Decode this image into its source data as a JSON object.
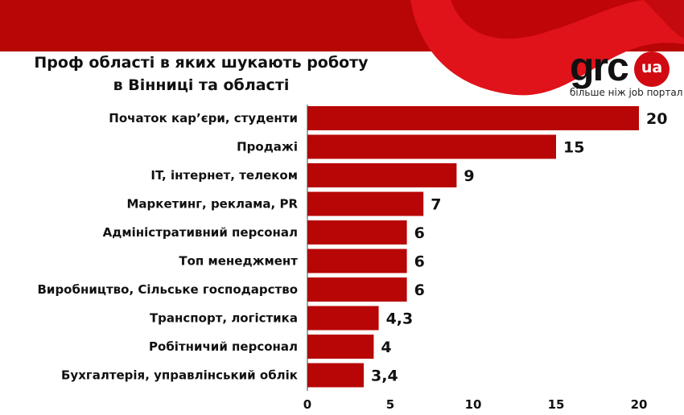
{
  "chart_data": {
    "type": "bar",
    "orientation": "horizontal",
    "title": "Проф області в яких шукають роботу в Вінниці та області",
    "title_lines": [
      "Проф області в яких шукають роботу",
      "в Вінниці та області"
    ],
    "categories": [
      "Початок кар’єри, студенти",
      "Продажі",
      "IT, інтернет, телеком",
      "Маркетинг, реклама, PR",
      "Адміністративний персонал",
      "Топ менеджмент",
      "Виробництво, Сільське господарство",
      "Транспорт, логістика",
      "Робітничий персонал",
      "Бухгалтерія, управлінський облік"
    ],
    "values": [
      20,
      15,
      9,
      7,
      6,
      6,
      6,
      4.3,
      4,
      3.4
    ],
    "data_labels": [
      "20",
      "15",
      "9",
      "7",
      "6",
      "6",
      "6",
      "4,3",
      "4",
      "3,4"
    ],
    "xlim": [
      0,
      20
    ],
    "x_ticks": [
      "0",
      "5",
      "10",
      "15",
      "20"
    ],
    "grid": false,
    "legend": "none",
    "bar_color": "#b80505"
  },
  "brand": {
    "logo_text": "grc",
    "logo_badge": "ua",
    "tagline": "більше ніж job портал",
    "banner_color": "#b80505",
    "accent": "#d10a11"
  }
}
